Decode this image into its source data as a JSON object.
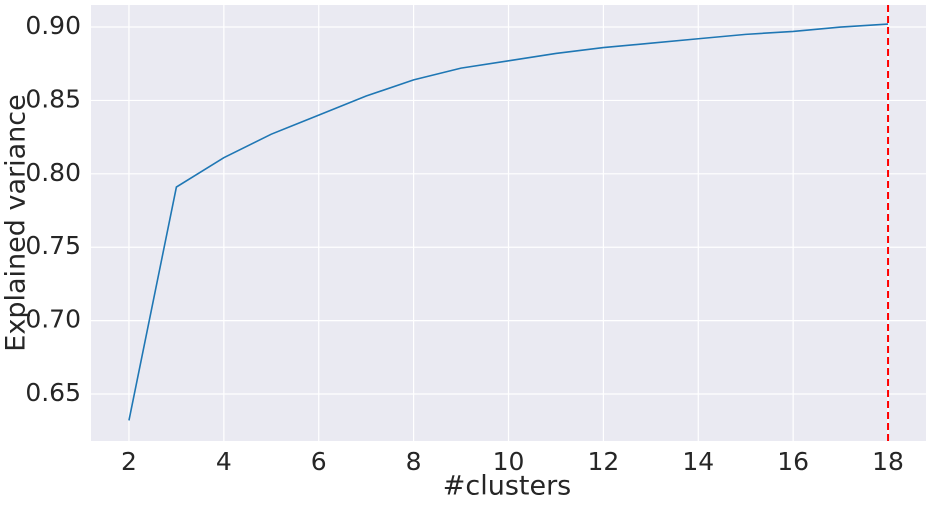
{
  "chart_data": {
    "type": "line",
    "x_label": "#clusters",
    "y_label": "Explained variance",
    "x": [
      2,
      3,
      4,
      5,
      6,
      7,
      8,
      9,
      10,
      11,
      12,
      13,
      14,
      15,
      16,
      17,
      18
    ],
    "series": [
      {
        "color": "#1f77b4",
        "values": [
          0.632,
          0.791,
          0.811,
          0.827,
          0.84,
          0.853,
          0.864,
          0.872,
          0.877,
          0.882,
          0.886,
          0.889,
          0.892,
          0.895,
          0.897,
          0.9,
          0.902
        ]
      }
    ],
    "xlim": [
      1.2,
      18.8
    ],
    "xticks": [
      2,
      4,
      6,
      8,
      10,
      12,
      14,
      16,
      18
    ],
    "ylim": [
      0.618,
      0.915
    ],
    "yticks": [
      {
        "value": 0.65,
        "label": "0.65"
      },
      {
        "value": 0.7,
        "label": "0.70"
      },
      {
        "value": 0.75,
        "label": "0.75"
      },
      {
        "value": 0.8,
        "label": "0.80"
      },
      {
        "value": 0.85,
        "label": "0.85"
      },
      {
        "value": 0.9,
        "label": "0.90"
      }
    ],
    "vline": {
      "x": 18,
      "color": "#ff0000"
    },
    "grid": true
  }
}
